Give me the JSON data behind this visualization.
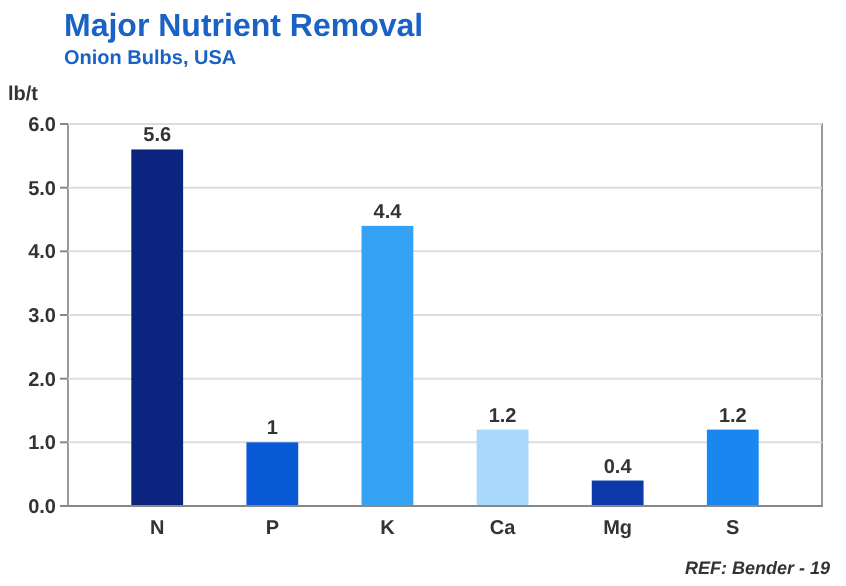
{
  "chart_data": {
    "type": "bar",
    "title": "Major Nutrient Removal",
    "subtitle": "Onion Bulbs, USA",
    "ylabel": "lb/t",
    "categories": [
      "N",
      "P",
      "K",
      "Ca",
      "Mg",
      "S"
    ],
    "values": [
      5.6,
      1,
      4.4,
      1.2,
      0.4,
      1.2
    ],
    "colors": [
      "#0a2480",
      "#0a5ad8",
      "#36a2f4",
      "#a8d8fb",
      "#0d3aa8",
      "#1a86f0"
    ],
    "value_labels": [
      "5.6",
      "1",
      "4.4",
      "1.2",
      "0.4",
      "1.2"
    ],
    "ylim": [
      0,
      6
    ],
    "yticks": [
      {
        "value": 0,
        "label": "0.0"
      },
      {
        "value": 1,
        "label": "1.0"
      },
      {
        "value": 2,
        "label": "2.0"
      },
      {
        "value": 3,
        "label": "3.0"
      },
      {
        "value": 4,
        "label": "4.0"
      },
      {
        "value": 5,
        "label": "5.0"
      },
      {
        "value": 6,
        "label": "6.0"
      }
    ],
    "grid": "y",
    "annotations": [
      "REF: Bender - 19"
    ]
  }
}
